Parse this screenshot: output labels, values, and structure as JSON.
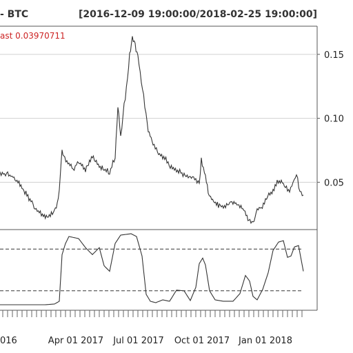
{
  "header": {
    "title": "- BTC",
    "range": "[2016-12-09 19:00:00/2018-02-25 19:00:00]",
    "last_label": "ast 0.03970711"
  },
  "colors": {
    "last_label": "#cc2222",
    "series": "#333333"
  },
  "chart_data": [
    {
      "type": "line",
      "title": "- BTC",
      "subtitle": "[2016-12-09 19:00:00/2018-02-25 19:00:00]",
      "annotation": "ast 0.03970711",
      "ylim": [
        0.013,
        0.172
      ],
      "xlim": [
        "2016-12-09",
        "2018-02-25"
      ],
      "y_ticks": [
        "0.15",
        "0.10",
        "0.05"
      ],
      "x_ticks": [
        "016",
        "Apr 01 2017",
        "Jul 01 2017",
        "Oct 01 2017",
        "Jan 01 2018"
      ],
      "grid": true,
      "series": [
        {
          "x": [
            "2016-12-09",
            "2016-12-20",
            "2016-12-31",
            "2017-01-10",
            "2017-01-20",
            "2017-02-01",
            "2017-02-10",
            "2017-02-20",
            "2017-03-01",
            "2017-03-05",
            "2017-03-08",
            "2017-03-12",
            "2017-03-16",
            "2017-03-22",
            "2017-03-28",
            "2017-04-05",
            "2017-04-15",
            "2017-04-25",
            "2017-05-05",
            "2017-05-12",
            "2017-05-20",
            "2017-05-28",
            "2017-06-01",
            "2017-06-05",
            "2017-06-10",
            "2017-06-15",
            "2017-06-18",
            "2017-06-22",
            "2017-06-26",
            "2017-06-30",
            "2017-07-05",
            "2017-07-10",
            "2017-07-15",
            "2017-07-22",
            "2017-07-30",
            "2017-08-08",
            "2017-08-16",
            "2017-08-25",
            "2017-09-05",
            "2017-09-14",
            "2017-09-22",
            "2017-09-27",
            "2017-09-30",
            "2017-10-03",
            "2017-10-06",
            "2017-10-10",
            "2017-10-15",
            "2017-10-22",
            "2017-11-01",
            "2017-11-12",
            "2017-11-22",
            "2017-12-01",
            "2017-12-08",
            "2017-12-14",
            "2017-12-20",
            "2017-12-26",
            "2018-01-01",
            "2018-01-06",
            "2018-01-12",
            "2018-01-18",
            "2018-01-24",
            "2018-01-30",
            "2018-02-05",
            "2018-02-10",
            "2018-02-15",
            "2018-02-20",
            "2018-02-25"
          ],
          "values": [
            0.055,
            0.057,
            0.054,
            0.048,
            0.04,
            0.03,
            0.025,
            0.023,
            0.027,
            0.033,
            0.044,
            0.075,
            0.068,
            0.065,
            0.06,
            0.066,
            0.06,
            0.07,
            0.063,
            0.06,
            0.058,
            0.07,
            0.11,
            0.085,
            0.11,
            0.13,
            0.15,
            0.162,
            0.157,
            0.148,
            0.13,
            0.11,
            0.09,
            0.08,
            0.072,
            0.069,
            0.063,
            0.06,
            0.056,
            0.054,
            0.052,
            0.049,
            0.068,
            0.06,
            0.055,
            0.043,
            0.037,
            0.033,
            0.03,
            0.035,
            0.033,
            0.028,
            0.02,
            0.018,
            0.028,
            0.03,
            0.036,
            0.04,
            0.043,
            0.05,
            0.052,
            0.046,
            0.044,
            0.05,
            0.056,
            0.043,
            0.04
          ]
        }
      ]
    },
    {
      "type": "line",
      "ylim": [
        0,
        1
      ],
      "reference_lines": [
        0.8,
        0.2
      ],
      "series": [
        {
          "x": [
            "2016-12-09",
            "2017-01-20",
            "2017-02-15",
            "2017-03-01",
            "2017-03-08",
            "2017-03-12",
            "2017-03-17",
            "2017-03-22",
            "2017-04-05",
            "2017-04-15",
            "2017-04-25",
            "2017-05-05",
            "2017-05-12",
            "2017-05-20",
            "2017-05-28",
            "2017-06-05",
            "2017-06-20",
            "2017-06-28",
            "2017-07-06",
            "2017-07-12",
            "2017-07-18",
            "2017-07-26",
            "2017-08-05",
            "2017-08-15",
            "2017-08-25",
            "2017-09-05",
            "2017-09-14",
            "2017-09-22",
            "2017-09-27",
            "2017-10-02",
            "2017-10-06",
            "2017-10-12",
            "2017-10-20",
            "2017-11-01",
            "2017-11-15",
            "2017-11-25",
            "2017-12-03",
            "2017-12-09",
            "2017-12-14",
            "2017-12-20",
            "2017-12-28",
            "2018-01-05",
            "2018-01-12",
            "2018-01-20",
            "2018-01-27",
            "2018-02-02",
            "2018-02-07",
            "2018-02-12",
            "2018-02-18",
            "2018-02-25"
          ],
          "values": [
            0.0,
            0.0,
            0.0,
            0.01,
            0.05,
            0.72,
            0.88,
            0.98,
            0.95,
            0.82,
            0.72,
            0.82,
            0.56,
            0.48,
            0.88,
            1.0,
            1.02,
            0.98,
            0.7,
            0.15,
            0.05,
            0.03,
            0.07,
            0.05,
            0.21,
            0.2,
            0.06,
            0.25,
            0.59,
            0.67,
            0.57,
            0.2,
            0.07,
            0.05,
            0.05,
            0.16,
            0.42,
            0.34,
            0.12,
            0.07,
            0.22,
            0.46,
            0.78,
            0.9,
            0.92,
            0.68,
            0.7,
            0.83,
            0.85,
            0.48
          ]
        }
      ]
    }
  ]
}
